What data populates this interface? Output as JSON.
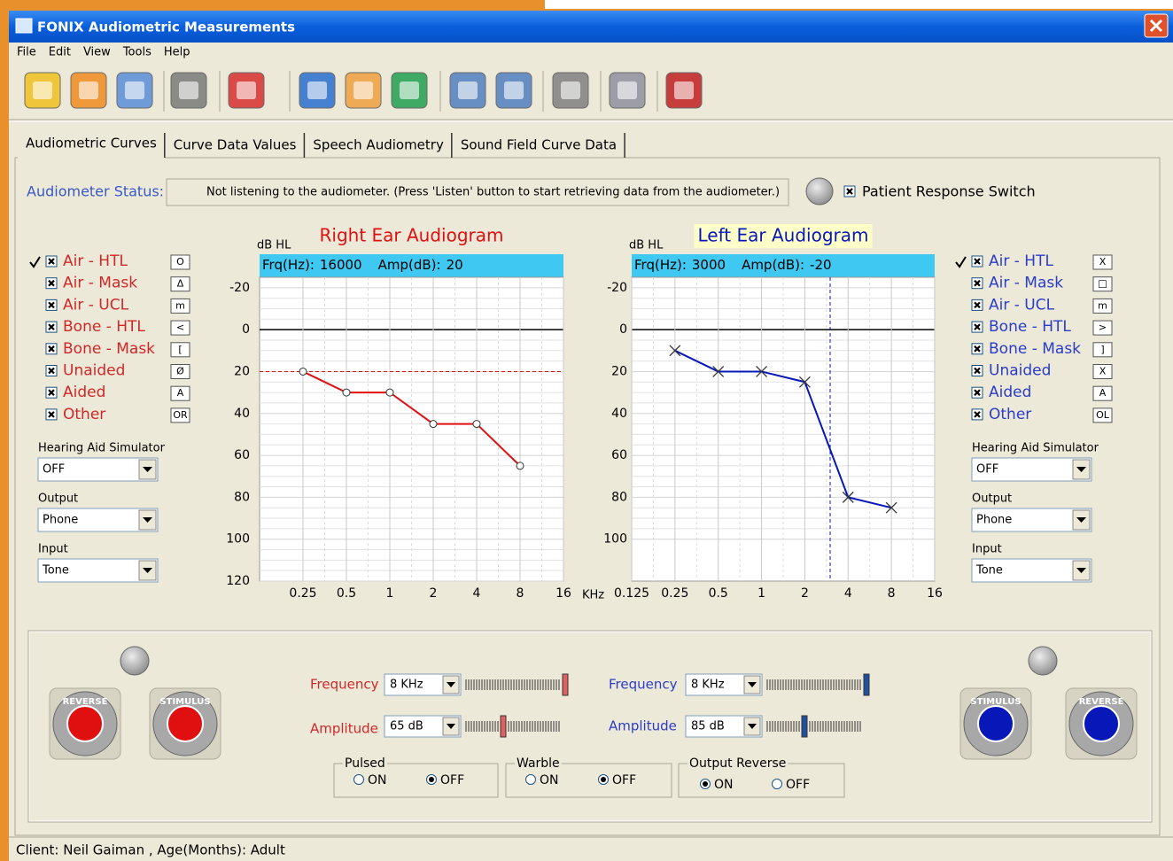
{
  "window": {
    "title": "FONIX Audiometric Measurements"
  },
  "menu": [
    "File",
    "Edit",
    "View",
    "Tools",
    "Help"
  ],
  "tabs": [
    "Audiometric Curves",
    "Curve Data Values",
    "Speech Audiometry",
    "Sound Field Curve Data"
  ],
  "status": {
    "label": "Audiometer Status:",
    "message": "Not listening to the audiometer. (Press 'Listen' button  to start retrieving data from the audiometer.)",
    "switch": "Patient Response Switch"
  },
  "x_unit": "KHz",
  "ears": [
    {
      "color": "#e01010",
      "text_color": "#d02828",
      "active_item": 0,
      "legend": [
        {
          "name": "Air - HTL",
          "symbol": "O"
        },
        {
          "name": "Air - Mask",
          "symbol": "Δ"
        },
        {
          "name": "Air - UCL",
          "symbol": "m"
        },
        {
          "name": "Bone - HTL",
          "symbol": "<"
        },
        {
          "name": "Bone - Mask",
          "symbol": "["
        },
        {
          "name": "Unaided",
          "symbol": "Ø"
        },
        {
          "name": "Aided",
          "symbol": "A"
        },
        {
          "name": "Other",
          "symbol": "OR"
        }
      ],
      "selects": [
        {
          "label": "Hearing Aid Simulator",
          "value": "OFF"
        },
        {
          "label": "Output",
          "value": "Phone"
        },
        {
          "label": "Input",
          "value": "Tone"
        }
      ],
      "audiogram": {
        "title": "Right Ear Audiogram",
        "y_label": "dB HL",
        "readout": {
          "frq_label": "Frq(Hz):",
          "frq": 16000,
          "amp_label": "Amp(dB):",
          "amp": 20
        },
        "cursor": "amp",
        "marker": "circle",
        "xlim": [
          0.125,
          16
        ],
        "ylim": [
          -25,
          120
        ],
        "xticks": [
          0.25,
          0.5,
          1,
          2,
          4,
          8,
          16
        ],
        "yticks": [
          -20,
          0,
          20,
          40,
          60,
          80,
          100,
          120
        ],
        "x": [
          0.25,
          0.5,
          1,
          2,
          4,
          8
        ],
        "values": [
          20,
          30,
          30,
          45,
          45,
          65
        ]
      },
      "controls": [
        {
          "label": "Frequency",
          "value": "8 KHz"
        },
        {
          "label": "Amplitude",
          "value": "65 dB"
        }
      ],
      "buttons": [
        "REVERSE",
        "STIMULUS"
      ]
    },
    {
      "color": "#0818b8",
      "text_color": "#2a3cc8",
      "active_item": 0,
      "legend": [
        {
          "name": "Air - HTL",
          "symbol": "X"
        },
        {
          "name": "Air - Mask",
          "symbol": "□"
        },
        {
          "name": "Air - UCL",
          "symbol": "m"
        },
        {
          "name": "Bone - HTL",
          "symbol": ">"
        },
        {
          "name": "Bone - Mask",
          "symbol": "]"
        },
        {
          "name": "Unaided",
          "symbol": "X"
        },
        {
          "name": "Aided",
          "symbol": "A"
        },
        {
          "name": "Other",
          "symbol": "OL"
        }
      ],
      "selects": [
        {
          "label": "Hearing Aid Simulator",
          "value": "OFF"
        },
        {
          "label": "Output",
          "value": "Phone"
        },
        {
          "label": "Input",
          "value": "Tone"
        }
      ],
      "audiogram": {
        "title": "Left Ear Audiogram",
        "y_label": "dB HL",
        "readout": {
          "frq_label": "Frq(Hz):",
          "frq": 3000,
          "amp_label": "Amp(dB):",
          "amp": -20
        },
        "cursor": "frq",
        "marker": "x",
        "xlim": [
          0.125,
          16
        ],
        "ylim": [
          -25,
          120
        ],
        "xticks": [
          0.125,
          0.25,
          0.5,
          1,
          2,
          4,
          8,
          16
        ],
        "yticks": [
          -20,
          0,
          20,
          40,
          60,
          80,
          100
        ],
        "x": [
          0.25,
          0.5,
          1,
          2,
          4,
          8
        ],
        "values": [
          10,
          20,
          20,
          25,
          80,
          85
        ]
      },
      "controls": [
        {
          "label": "Frequency",
          "value": "8 KHz"
        },
        {
          "label": "Amplitude",
          "value": "85 dB"
        }
      ],
      "buttons": [
        "STIMULUS",
        "REVERSE"
      ]
    }
  ],
  "options": [
    {
      "label": "Pulsed",
      "choices": [
        "ON",
        "OFF"
      ],
      "selected": 1
    },
    {
      "label": "Warble",
      "choices": [
        "ON",
        "OFF"
      ],
      "selected": 1
    },
    {
      "label": "Output Reverse",
      "choices": [
        "ON",
        "OFF"
      ],
      "selected": 0
    }
  ],
  "footer": "Client: Neil Gaiman , Age(Months): Adult"
}
